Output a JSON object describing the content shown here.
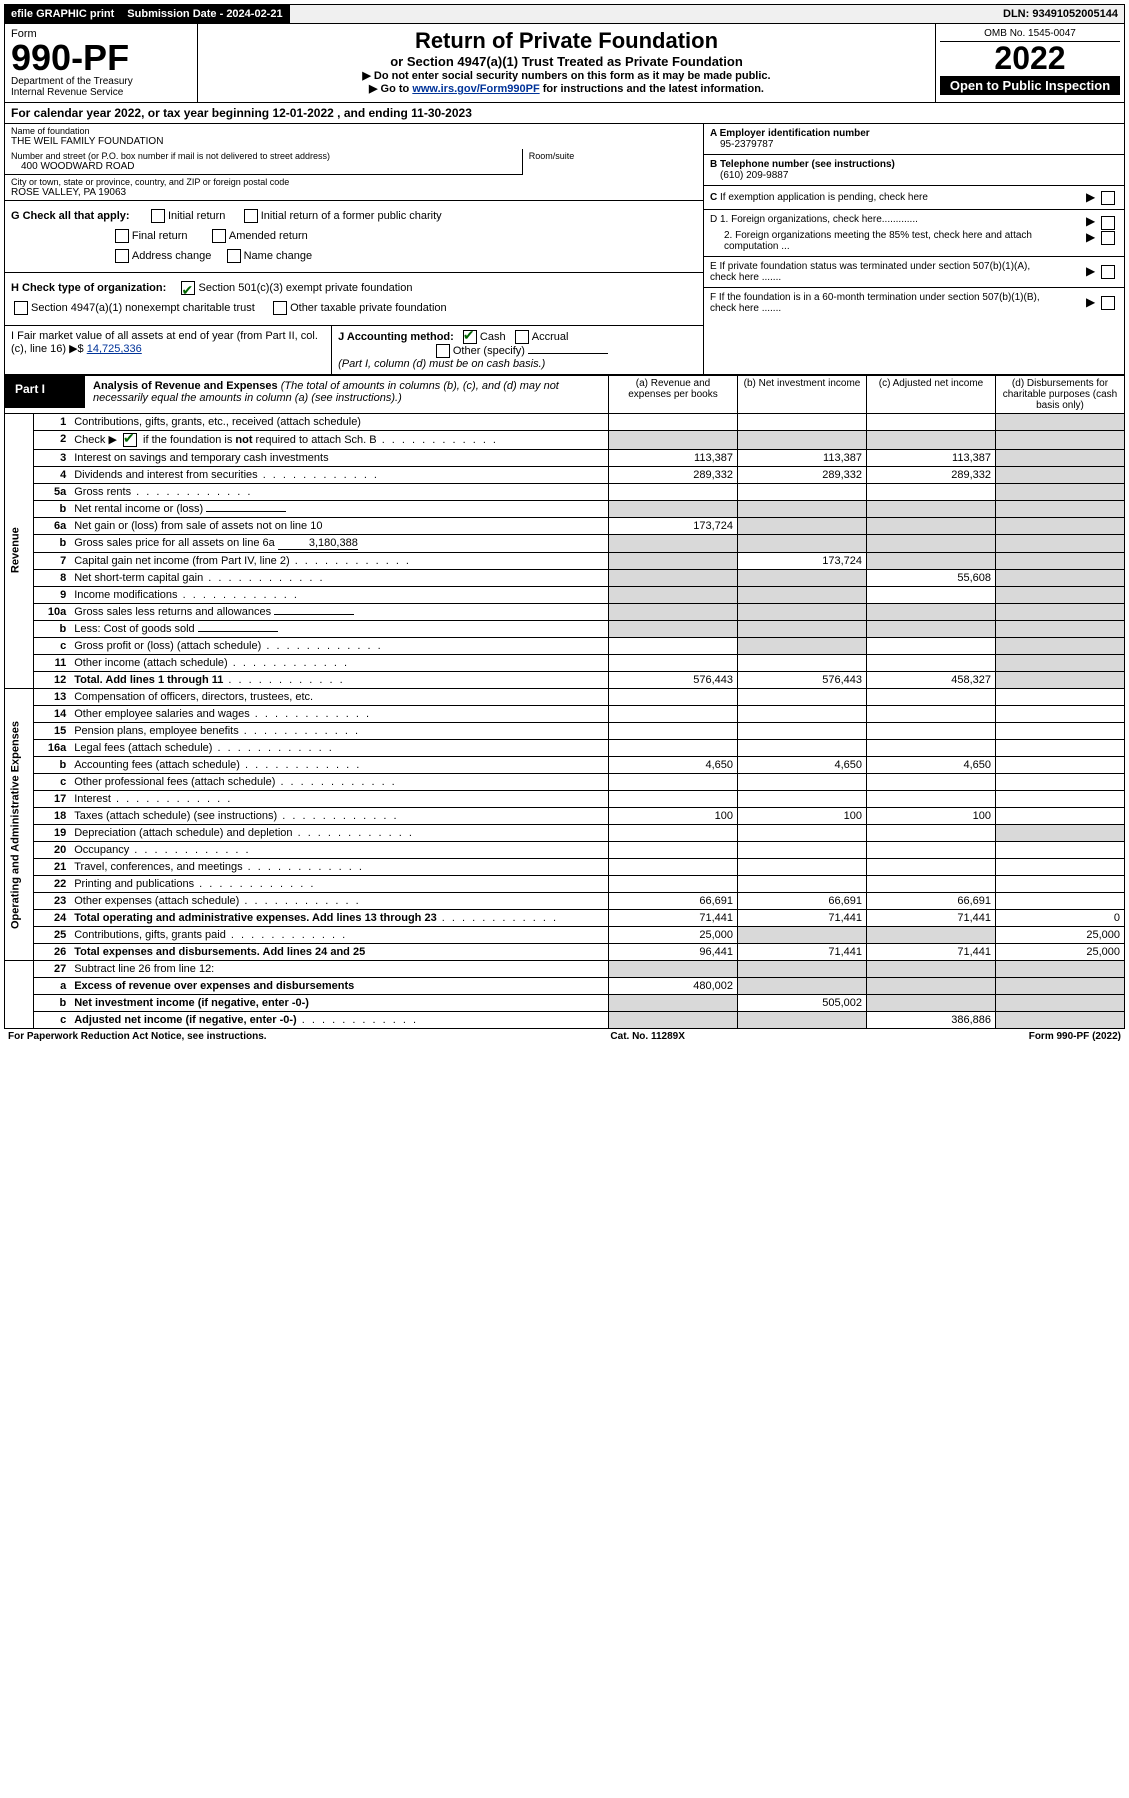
{
  "topbar": {
    "efile": "efile GRAPHIC print",
    "sub_label": "Submission Date - 2024-02-21",
    "dln": "DLN: 93491052005144"
  },
  "header": {
    "form_word": "Form",
    "form_num": "990-PF",
    "dept": "Department of the Treasury",
    "irs": "Internal Revenue Service",
    "title": "Return of Private Foundation",
    "subtitle": "or Section 4947(a)(1) Trust Treated as Private Foundation",
    "note1": "▶ Do not enter social security numbers on this form as it may be made public.",
    "note2_pre": "▶ Go to ",
    "note2_link": "www.irs.gov/Form990PF",
    "note2_post": " for instructions and the latest information.",
    "omb": "OMB No. 1545-0047",
    "year": "2022",
    "open": "Open to Public Inspection"
  },
  "calyear": "For calendar year 2022, or tax year beginning 12-01-2022                       , and ending 11-30-2023",
  "org": {
    "name_label": "Name of foundation",
    "name": "THE WEIL FAMILY FOUNDATION",
    "addr_label": "Number and street (or P.O. box number if mail is not delivered to street address)",
    "room_label": "Room/suite",
    "addr": "400 WOODWARD ROAD",
    "city_label": "City or town, state or province, country, and ZIP or foreign postal code",
    "city": "ROSE VALLEY, PA  19063"
  },
  "right": {
    "a_label": "A Employer identification number",
    "a_val": "95-2379787",
    "b_label": "B Telephone number (see instructions)",
    "b_val": "(610) 209-9887",
    "c_label": "C If exemption application is pending, check here",
    "d1": "D 1. Foreign organizations, check here.............",
    "d2": "2. Foreign organizations meeting the 85% test, check here and attach computation ...",
    "e": "E  If private foundation status was terminated under section 507(b)(1)(A), check here .......",
    "f": "F  If the foundation is in a 60-month termination under section 507(b)(1)(B), check here .......",
    "arrow": "▶"
  },
  "g": {
    "label": "G Check all that apply:",
    "opts": [
      "Initial return",
      "Initial return of a former public charity",
      "Final return",
      "Amended return",
      "Address change",
      "Name change"
    ]
  },
  "h": {
    "label": "H Check type of organization:",
    "o1": "Section 501(c)(3) exempt private foundation",
    "o2": "Section 4947(a)(1) nonexempt charitable trust",
    "o3": "Other taxable private foundation"
  },
  "i": {
    "label": "I Fair market value of all assets at end of year (from Part II, col. (c), line 16)  ▶$",
    "val": "14,725,336"
  },
  "j": {
    "label": "J Accounting method:",
    "cash": "Cash",
    "accrual": "Accrual",
    "other": "Other (specify)",
    "note": "(Part I, column (d) must be on cash basis.)"
  },
  "part1": {
    "label": "Part I",
    "title": "Analysis of Revenue and Expenses",
    "note": "(The total of amounts in columns (b), (c), and (d) may not necessarily equal the amounts in column (a) (see instructions).)",
    "cols": {
      "a": "(a)   Revenue and expenses per books",
      "b": "(b)   Net investment income",
      "c": "(c)   Adjusted net income",
      "d": "(d)   Disbursements for charitable purposes (cash basis only)"
    }
  },
  "sections": {
    "rev": "Revenue",
    "exp": "Operating and Administrative Expenses"
  },
  "rows": [
    {
      "n": "1",
      "d": "Contributions, gifts, grants, etc., received (attach schedule)",
      "a": "",
      "b": "",
      "c": "",
      "dcol": "",
      "dgrey": true
    },
    {
      "n": "2",
      "d": "Check ▶ ☑ if the foundation is not required to attach Sch. B",
      "a": "",
      "b": "",
      "c": "",
      "dcol": "",
      "bgrey": true,
      "cgrey": true,
      "dgrey": true,
      "agrey": true,
      "chk": true,
      "dots": true
    },
    {
      "n": "3",
      "d": "Interest on savings and temporary cash investments",
      "a": "113,387",
      "b": "113,387",
      "c": "113,387",
      "dcol": "",
      "dgrey": true
    },
    {
      "n": "4",
      "d": "Dividends and interest from securities",
      "a": "289,332",
      "b": "289,332",
      "c": "289,332",
      "dcol": "",
      "dgrey": true,
      "dots": true
    },
    {
      "n": "5a",
      "d": "Gross rents",
      "a": "",
      "b": "",
      "c": "",
      "dcol": "",
      "dgrey": true,
      "dots": true
    },
    {
      "n": "b",
      "d": "Net rental income or (loss)",
      "a": "",
      "b": "",
      "c": "",
      "dcol": "",
      "agrey": true,
      "bgrey": true,
      "cgrey": true,
      "dgrey": true,
      "inline": true
    },
    {
      "n": "6a",
      "d": "Net gain or (loss) from sale of assets not on line 10",
      "a": "173,724",
      "b": "",
      "c": "",
      "dcol": "",
      "bgrey": true,
      "cgrey": true,
      "dgrey": true
    },
    {
      "n": "b",
      "d": "Gross sales price for all assets on line 6a",
      "a": "",
      "b": "",
      "c": "",
      "dcol": "",
      "agrey": true,
      "bgrey": true,
      "cgrey": true,
      "dgrey": true,
      "inline": true,
      "inlineval": "3,180,388"
    },
    {
      "n": "7",
      "d": "Capital gain net income (from Part IV, line 2)",
      "a": "",
      "b": "173,724",
      "c": "",
      "dcol": "",
      "agrey": true,
      "cgrey": true,
      "dgrey": true,
      "dots": true
    },
    {
      "n": "8",
      "d": "Net short-term capital gain",
      "a": "",
      "b": "",
      "c": "55,608",
      "dcol": "",
      "agrey": true,
      "bgrey": true,
      "dgrey": true,
      "dots": true
    },
    {
      "n": "9",
      "d": "Income modifications",
      "a": "",
      "b": "",
      "c": "",
      "dcol": "",
      "agrey": true,
      "bgrey": true,
      "dgrey": true,
      "dots": true
    },
    {
      "n": "10a",
      "d": "Gross sales less returns and allowances",
      "a": "",
      "b": "",
      "c": "",
      "dcol": "",
      "agrey": true,
      "bgrey": true,
      "cgrey": true,
      "dgrey": true,
      "inline": true
    },
    {
      "n": "b",
      "d": "Less: Cost of goods sold",
      "a": "",
      "b": "",
      "c": "",
      "dcol": "",
      "agrey": true,
      "bgrey": true,
      "cgrey": true,
      "dgrey": true,
      "inline": true,
      "dots": true
    },
    {
      "n": "c",
      "d": "Gross profit or (loss) (attach schedule)",
      "a": "",
      "b": "",
      "c": "",
      "dcol": "",
      "bgrey": true,
      "dgrey": true,
      "dots": true
    },
    {
      "n": "11",
      "d": "Other income (attach schedule)",
      "a": "",
      "b": "",
      "c": "",
      "dcol": "",
      "dgrey": true,
      "dots": true
    },
    {
      "n": "12",
      "d": "Total. Add lines 1 through 11",
      "a": "576,443",
      "b": "576,443",
      "c": "458,327",
      "dcol": "",
      "dgrey": true,
      "bold": true,
      "dots": true
    }
  ],
  "exprows": [
    {
      "n": "13",
      "d": "Compensation of officers, directors, trustees, etc.",
      "a": "",
      "b": "",
      "c": "",
      "dcol": ""
    },
    {
      "n": "14",
      "d": "Other employee salaries and wages",
      "a": "",
      "b": "",
      "c": "",
      "dcol": "",
      "dots": true
    },
    {
      "n": "15",
      "d": "Pension plans, employee benefits",
      "a": "",
      "b": "",
      "c": "",
      "dcol": "",
      "dots": true
    },
    {
      "n": "16a",
      "d": "Legal fees (attach schedule)",
      "a": "",
      "b": "",
      "c": "",
      "dcol": "",
      "dots": true
    },
    {
      "n": "b",
      "d": "Accounting fees (attach schedule)",
      "a": "4,650",
      "b": "4,650",
      "c": "4,650",
      "dcol": "",
      "dots": true
    },
    {
      "n": "c",
      "d": "Other professional fees (attach schedule)",
      "a": "",
      "b": "",
      "c": "",
      "dcol": "",
      "dots": true
    },
    {
      "n": "17",
      "d": "Interest",
      "a": "",
      "b": "",
      "c": "",
      "dcol": "",
      "dots": true
    },
    {
      "n": "18",
      "d": "Taxes (attach schedule) (see instructions)",
      "a": "100",
      "b": "100",
      "c": "100",
      "dcol": "",
      "dots": true
    },
    {
      "n": "19",
      "d": "Depreciation (attach schedule) and depletion",
      "a": "",
      "b": "",
      "c": "",
      "dcol": "",
      "dgrey": true,
      "dots": true
    },
    {
      "n": "20",
      "d": "Occupancy",
      "a": "",
      "b": "",
      "c": "",
      "dcol": "",
      "dots": true
    },
    {
      "n": "21",
      "d": "Travel, conferences, and meetings",
      "a": "",
      "b": "",
      "c": "",
      "dcol": "",
      "dots": true
    },
    {
      "n": "22",
      "d": "Printing and publications",
      "a": "",
      "b": "",
      "c": "",
      "dcol": "",
      "dots": true
    },
    {
      "n": "23",
      "d": "Other expenses (attach schedule)",
      "a": "66,691",
      "b": "66,691",
      "c": "66,691",
      "dcol": "",
      "dots": true
    },
    {
      "n": "24",
      "d": "Total operating and administrative expenses. Add lines 13 through 23",
      "a": "71,441",
      "b": "71,441",
      "c": "71,441",
      "dcol": "0",
      "bold": true,
      "dots": true
    },
    {
      "n": "25",
      "d": "Contributions, gifts, grants paid",
      "a": "25,000",
      "b": "",
      "c": "",
      "dcol": "25,000",
      "bgrey": true,
      "cgrey": true,
      "dots": true
    },
    {
      "n": "26",
      "d": "Total expenses and disbursements. Add lines 24 and 25",
      "a": "96,441",
      "b": "71,441",
      "c": "71,441",
      "dcol": "25,000",
      "bold": true
    }
  ],
  "botrows": [
    {
      "n": "27",
      "d": "Subtract line 26 from line 12:",
      "a": "",
      "b": "",
      "c": "",
      "dcol": "",
      "agrey": true,
      "bgrey": true,
      "cgrey": true,
      "dgrey": true
    },
    {
      "n": "a",
      "d": "Excess of revenue over expenses and disbursements",
      "a": "480,002",
      "b": "",
      "c": "",
      "dcol": "",
      "bgrey": true,
      "cgrey": true,
      "dgrey": true,
      "bold": true
    },
    {
      "n": "b",
      "d": "Net investment income (if negative, enter -0-)",
      "a": "",
      "b": "505,002",
      "c": "",
      "dcol": "",
      "agrey": true,
      "cgrey": true,
      "dgrey": true,
      "bold": true
    },
    {
      "n": "c",
      "d": "Adjusted net income (if negative, enter -0-)",
      "a": "",
      "b": "",
      "c": "386,886",
      "dcol": "",
      "agrey": true,
      "bgrey": true,
      "dgrey": true,
      "bold": true,
      "dots": true
    }
  ],
  "footer": {
    "left": "For Paperwork Reduction Act Notice, see instructions.",
    "mid": "Cat. No. 11289X",
    "right": "Form 990-PF (2022)"
  }
}
